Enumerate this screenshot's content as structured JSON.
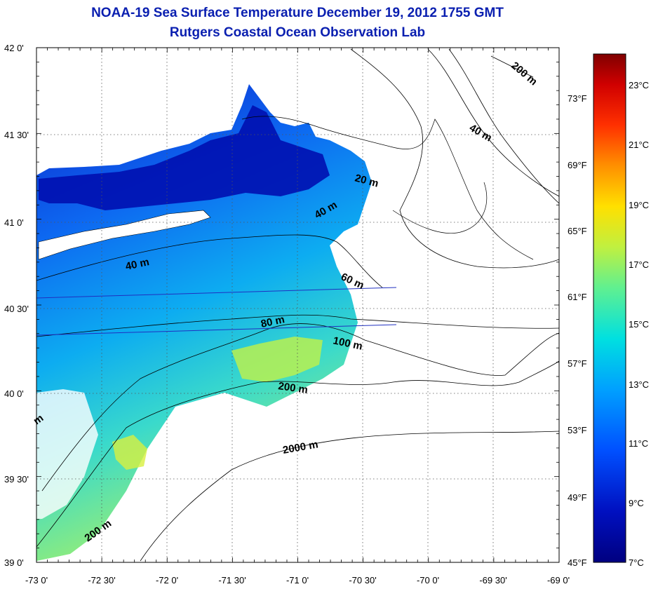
{
  "title": "NOAA-19 Sea Surface Temperature December 19, 2012 1755 GMT",
  "subtitle": "Rutgers Coastal Ocean Observation Lab",
  "map": {
    "lat_ticks": [
      "42 0'",
      "41 30'",
      "41 0'",
      "40 30'",
      "40 0'",
      "39 30'",
      "39 0'"
    ],
    "lon_ticks": [
      "-73 0'",
      "-72 30'",
      "-72 0'",
      "-71 30'",
      "-71 0'",
      "-70 30'",
      "-70 0'",
      "-69 30'",
      "-69 0'"
    ],
    "contours": [
      {
        "label": "200 m"
      },
      {
        "label": "40 m"
      },
      {
        "label": "20 m"
      },
      {
        "label": "40 m"
      },
      {
        "label": "40 m"
      },
      {
        "label": "60 m"
      },
      {
        "label": "80 m"
      },
      {
        "label": "100 m"
      },
      {
        "label": "200 m"
      },
      {
        "label": "2000 m"
      },
      {
        "label": "200 m"
      },
      {
        "label": "m"
      }
    ]
  },
  "colorbar": {
    "celsius_ticks": [
      "23°C",
      "21°C",
      "19°C",
      "17°C",
      "15°C",
      "13°C",
      "11°C",
      "9°C",
      "7°C"
    ],
    "fahrenheit_ticks": [
      "73°F",
      "69°F",
      "65°F",
      "61°F",
      "57°F",
      "53°F",
      "49°F",
      "45°F"
    ],
    "colors": [
      "#800000",
      "#c00000",
      "#ff2000",
      "#ff8000",
      "#ffd000",
      "#e0f020",
      "#a0f060",
      "#40e0c0",
      "#00c0f0",
      "#0080ff",
      "#0030e0",
      "#0010b0",
      "#000080"
    ]
  }
}
